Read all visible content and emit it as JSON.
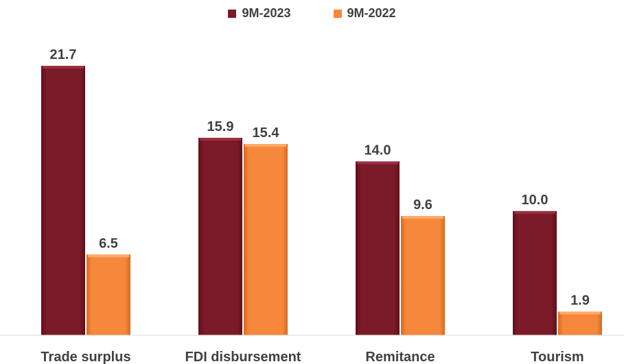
{
  "chart_data": {
    "type": "bar",
    "categories": [
      "Trade surplus",
      "FDI disbursement",
      "Remitance",
      "Tourism"
    ],
    "series": [
      {
        "name": "9M-2023",
        "values": [
          21.7,
          15.9,
          14.0,
          10.0
        ],
        "value_labels": [
          "21.7",
          "15.9",
          "14.0",
          "10.0"
        ],
        "color": "#7b1a28"
      },
      {
        "name": "9M-2022",
        "values": [
          6.5,
          15.4,
          9.6,
          1.9
        ],
        "value_labels": [
          "6.5",
          "15.4",
          "9.6",
          "1.9"
        ],
        "color": "#f5883a"
      }
    ],
    "ylim": [
      0,
      21.7
    ],
    "grid": false,
    "legend_position": "top-center"
  }
}
